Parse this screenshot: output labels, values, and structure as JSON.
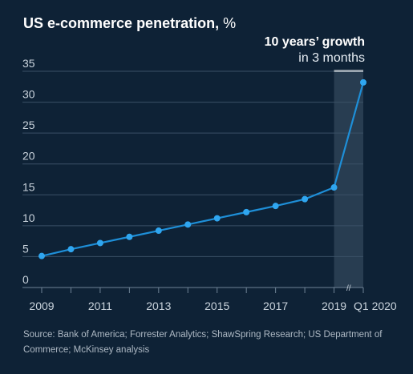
{
  "title": "US e-commerce penetration,",
  "title_unit": "%",
  "callout": {
    "line1": "10 years’ growth",
    "line2": "in 3 months"
  },
  "source": "Source: Bank of America; Forrester Analytics; ShawSpring Research; US Department of Commerce; McKinsey analysis",
  "colors": {
    "background": "#0e2236",
    "line": "#1e8fd8",
    "point": "#2fa6f0",
    "grid": "#3a5066",
    "highlight": "#2d4256"
  },
  "chart_data": {
    "type": "line",
    "x": [
      "2009",
      "2010",
      "2011",
      "2012",
      "2013",
      "2014",
      "2015",
      "2016",
      "2017",
      "2018",
      "2019",
      "Q1 2020"
    ],
    "x_tick_labels": [
      "2009",
      "2011",
      "2013",
      "2015",
      "2017",
      "2019",
      "Q1 2020"
    ],
    "series": [
      {
        "values": [
          5.1,
          6.2,
          7.2,
          8.2,
          9.2,
          10.2,
          11.2,
          12.2,
          13.2,
          14.3,
          16.2,
          33.2
        ]
      }
    ],
    "yticks": [
      0,
      5,
      10,
      15,
      20,
      25,
      30,
      35
    ],
    "ylim": [
      0,
      35
    ],
    "grid": true,
    "highlight_range": [
      "2019",
      "Q1 2020"
    ],
    "axis_break_between": [
      "2019",
      "Q1 2020"
    ],
    "axis_break_symbol": "//"
  }
}
